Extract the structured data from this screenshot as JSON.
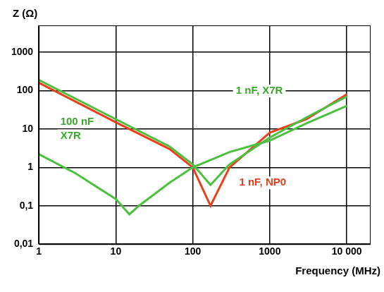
{
  "chart_data": {
    "type": "line",
    "x_label": "Frequency (MHz)",
    "y_label": "Z (Ω)",
    "log": true,
    "grid": true,
    "xlim": [
      1,
      20000
    ],
    "ylim": [
      0.01,
      5000
    ],
    "xticks": [
      1,
      10,
      100,
      1000,
      {
        "value": 10000,
        "label": "10 000"
      }
    ],
    "yticks": [
      {
        "value": 0.01,
        "label": "0,01"
      },
      {
        "value": 0.1,
        "label": "0,1"
      },
      1,
      10,
      100,
      1000
    ],
    "series": [
      {
        "name": "100 nF X7R",
        "color": "#4cc13f",
        "x": [
          1,
          3,
          10,
          15,
          20,
          50,
          100,
          300,
          1000,
          3000,
          10000
        ],
        "values": [
          2.2,
          0.7,
          0.15,
          0.06,
          0.1,
          0.4,
          1,
          2.5,
          5,
          14,
          40
        ]
      },
      {
        "name": "1 nF, X7R",
        "color": "#4cc13f",
        "x": [
          1,
          10,
          50,
          100,
          170,
          300,
          1000,
          3000,
          10000
        ],
        "values": [
          190,
          18,
          3.5,
          1.2,
          0.35,
          1.2,
          6,
          20,
          70
        ]
      },
      {
        "name": "1 nF, NP0",
        "color": "#e8401e",
        "x": [
          1,
          10,
          50,
          100,
          170,
          300,
          1000,
          3000,
          10000
        ],
        "values": [
          160,
          15,
          3,
          1,
          0.1,
          1,
          8,
          18,
          80
        ]
      }
    ]
  }
}
